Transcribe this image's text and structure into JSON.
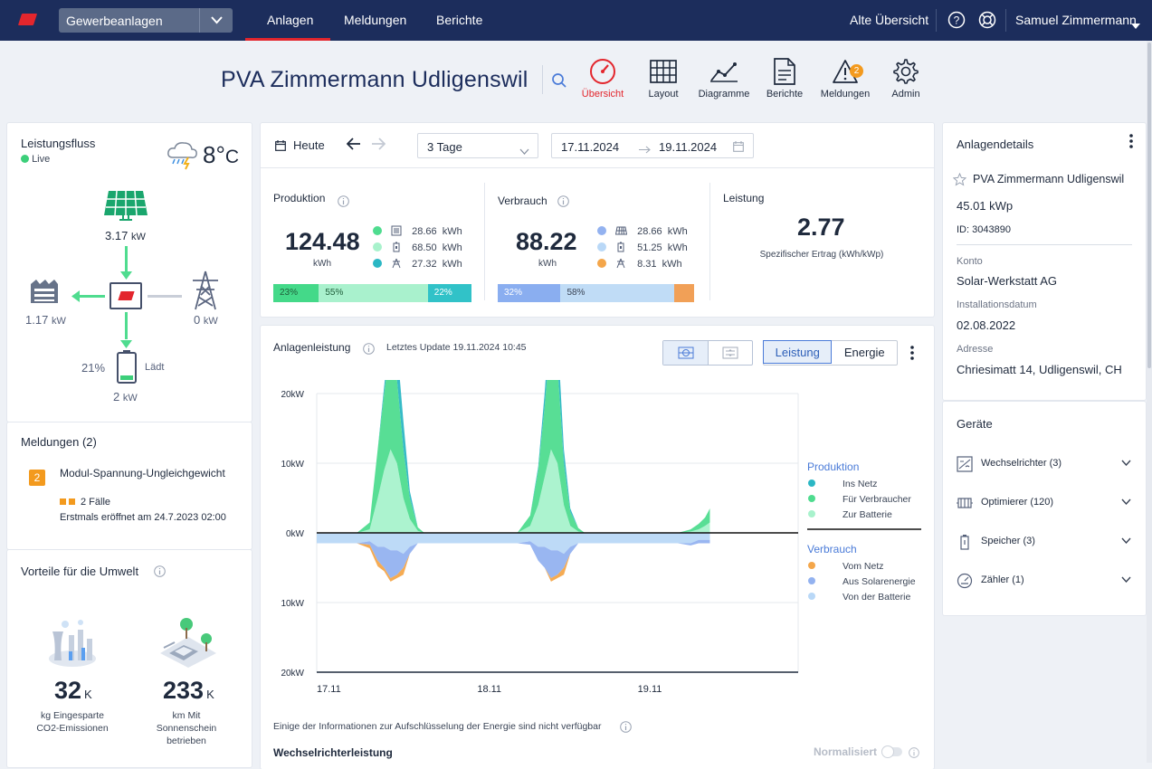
{
  "topbar": {
    "site_select": "Gewerbeanlagen",
    "tabs": [
      "Anlagen",
      "Meldungen",
      "Berichte"
    ],
    "old_view": "Alte Übersicht",
    "user": "Samuel Zimmermann"
  },
  "header": {
    "title": "PVA Zimmermann Udligenswil",
    "tools": [
      {
        "label": "Übersicht",
        "icon": "gauge-icon"
      },
      {
        "label": "Layout",
        "icon": "grid-icon"
      },
      {
        "label": "Diagramme",
        "icon": "line-chart-icon"
      },
      {
        "label": "Berichte",
        "icon": "document-icon"
      },
      {
        "label": "Meldungen",
        "icon": "warning-icon",
        "badge": "2"
      },
      {
        "label": "Admin",
        "icon": "gear-icon"
      }
    ]
  },
  "flow": {
    "title": "Leistungsfluss",
    "live": "Live",
    "temp": "8°",
    "temp_unit": "C",
    "pv_value": "3.17",
    "pv_unit": "kW",
    "consumer_value": "1.17",
    "consumer_unit": "kW",
    "grid_value": "0",
    "grid_unit": "kW",
    "battery_pct": "21%",
    "battery_state": "Lädt",
    "battery_value": "2",
    "battery_unit": "kW"
  },
  "alerts": {
    "title": "Meldungen (2)",
    "count_badge": "2",
    "name": "Modul-Spannung-Ungleichgewicht",
    "cases": "2 Fälle",
    "opened": "Erstmals eröffnet am 24.7.2023 02:00"
  },
  "environment": {
    "title": "Vorteile für die Umwelt",
    "co2_value": "32",
    "co2_suffix": "K",
    "co2_label": "kg Eingesparte CO2-Emissionen",
    "km_value": "233",
    "km_suffix": "K",
    "km_label": "km Mit Sonnenschein betrieben"
  },
  "controls": {
    "today": "Heute",
    "range_select": "3 Tage",
    "date_from": "17.11.2024",
    "date_to": "19.11.2024"
  },
  "production": {
    "title": "Produktion",
    "total": "124.48",
    "unit": "kWh",
    "rows": [
      {
        "value": "28.66",
        "unit": "kWh",
        "color": "#4fdc8f"
      },
      {
        "value": "68.50",
        "unit": "kWh",
        "color": "#a8f2cc"
      },
      {
        "value": "27.32",
        "unit": "kWh",
        "color": "#2bb7c4"
      }
    ],
    "bar": [
      {
        "label": "23%",
        "pct": 23,
        "color": "#44d989"
      },
      {
        "label": "55%",
        "pct": 55,
        "color": "#a9f1cd"
      },
      {
        "label": "22%",
        "pct": 22,
        "color": "#31c2c8"
      }
    ]
  },
  "consumption": {
    "title": "Verbrauch",
    "total": "88.22",
    "unit": "kWh",
    "rows": [
      {
        "value": "28.66",
        "unit": "kWh",
        "color": "#93b2f0"
      },
      {
        "value": "51.25",
        "unit": "kWh",
        "color": "#b9d8f7"
      },
      {
        "value": "8.31",
        "unit": "kWh",
        "color": "#f4a64a"
      }
    ],
    "bar": [
      {
        "label": "32%",
        "pct": 32,
        "color": "#8aaef0"
      },
      {
        "label": "58%",
        "pct": 58,
        "color": "#c0dcf6"
      },
      {
        "label": "",
        "pct": 10,
        "color": "#f1a057"
      }
    ]
  },
  "performance": {
    "title": "Leistung",
    "value": "2.77",
    "label": "Spezifischer Ertrag (kWh/kWp)"
  },
  "chart_panel": {
    "title": "Anlagenleistung",
    "updated": "Letztes Update 19.11.2024 10:45",
    "toggle_power": "Leistung",
    "toggle_energy": "Energie",
    "footnote": "Einige der Informationen zur Aufschlüsselung der Energie sind nicht verfügbar",
    "inverter_title": "Wechselrichterleistung",
    "normalized": "Normalisiert"
  },
  "chart_data": {
    "type": "area",
    "title": "Anlagenleistung",
    "xlabel": "",
    "ylabel": "",
    "x_ticks": [
      "17.11",
      "18.11",
      "19.11"
    ],
    "y_ticks": [
      "20kW",
      "10kW",
      "0kW",
      "10kW",
      "20kW"
    ],
    "ylim": [
      -20,
      20
    ],
    "x_days": [
      17.0,
      17.25,
      17.33,
      17.38,
      17.42,
      17.46,
      17.5,
      17.54,
      17.58,
      17.63,
      17.67,
      17.75,
      18.0,
      18.25,
      18.33,
      18.38,
      18.42,
      18.46,
      18.5,
      18.54,
      18.58,
      18.63,
      18.67,
      18.75,
      19.0,
      19.25,
      19.33,
      19.38,
      19.42,
      19.45
    ],
    "series": [
      {
        "name": "Für Verbraucher",
        "group": "Produktion",
        "color": "#4fdc8f",
        "values": [
          0,
          0,
          1,
          7,
          11,
          15,
          12,
          7,
          3,
          0.5,
          0,
          0,
          0,
          0,
          1.5,
          5,
          10,
          17,
          14,
          6,
          2,
          0.5,
          0,
          0,
          0,
          0,
          0.3,
          0.8,
          1.2,
          2
        ]
      },
      {
        "name": "Zur Batterie",
        "group": "Produktion",
        "color": "#a8f2cc",
        "values": [
          0,
          0,
          0.5,
          5,
          9,
          12,
          10,
          5,
          2,
          0.3,
          0,
          0,
          0,
          0,
          1,
          4,
          8,
          12,
          10,
          4,
          1,
          0.2,
          0,
          0,
          0,
          0,
          0.2,
          0.5,
          1,
          1.5
        ]
      },
      {
        "name": "Ins Netz",
        "group": "Produktion",
        "color": "#2bb7c4",
        "values": [
          0,
          0,
          0,
          0,
          1,
          3,
          5,
          4,
          1,
          0,
          0,
          0,
          0,
          0,
          0,
          0.5,
          2,
          4,
          5,
          2,
          0.5,
          0,
          0,
          0,
          0,
          0,
          0,
          0,
          0,
          0
        ]
      },
      {
        "name": "Von der Batterie",
        "group": "Verbrauch",
        "color": "#b9d8f7",
        "values": [
          -1.5,
          -1.5,
          -1.2,
          -2,
          -2,
          -2.5,
          -2.5,
          -3,
          -2,
          -1.5,
          -1.5,
          -1.5,
          -1.5,
          -1.5,
          -1.2,
          -2,
          -2,
          -2.5,
          -2.5,
          -3,
          -2,
          -1.5,
          -1.5,
          -1.5,
          -1.5,
          -1.5,
          -1.5,
          -1,
          -1,
          -1
        ]
      },
      {
        "name": "Aus Solarenergie",
        "group": "Verbrauch",
        "color": "#93b2f0",
        "values": [
          0,
          0,
          -0.5,
          -2,
          -3,
          -4,
          -3.5,
          -2,
          -1,
          0,
          0,
          0,
          0,
          0,
          -0.5,
          -2,
          -3,
          -4,
          -3.5,
          -2,
          -1,
          0,
          0,
          0,
          0,
          0,
          -0.3,
          -0.5,
          -0.5,
          -0.5
        ]
      },
      {
        "name": "Vom Netz",
        "group": "Verbrauch",
        "color": "#f4a64a",
        "values": [
          0,
          0,
          -0.5,
          -0.8,
          -0.5,
          -0.5,
          -0.5,
          -1,
          0,
          0,
          0,
          0,
          0,
          0,
          0,
          0,
          0,
          -0.5,
          -0.5,
          -1,
          0,
          0,
          0,
          0,
          0,
          0,
          0,
          0,
          0,
          0
        ]
      }
    ],
    "legend": {
      "Produktion": [
        "Ins Netz",
        "Für Verbraucher",
        "Zur Batterie"
      ],
      "Verbrauch": [
        "Vom Netz",
        "Aus Solarenergie",
        "Von der Batterie"
      ]
    },
    "legend_position": "right",
    "grid": true
  },
  "details": {
    "title": "Anlagendetails",
    "name": "PVA Zimmermann Udligenswil",
    "power": "45.01 kWp",
    "id": "ID: 3043890",
    "account_label": "Konto",
    "account": "Solar-Werkstatt AG",
    "install_label": "Installationsdatum",
    "install_date": "02.08.2022",
    "address_label": "Adresse",
    "address": "Chriesimatt 14, Udligenswil, CH"
  },
  "devices": {
    "title": "Geräte",
    "items": [
      "Wechselrichter (3)",
      "Optimierer (120)",
      "Speicher (3)",
      "Zähler (1)"
    ]
  }
}
